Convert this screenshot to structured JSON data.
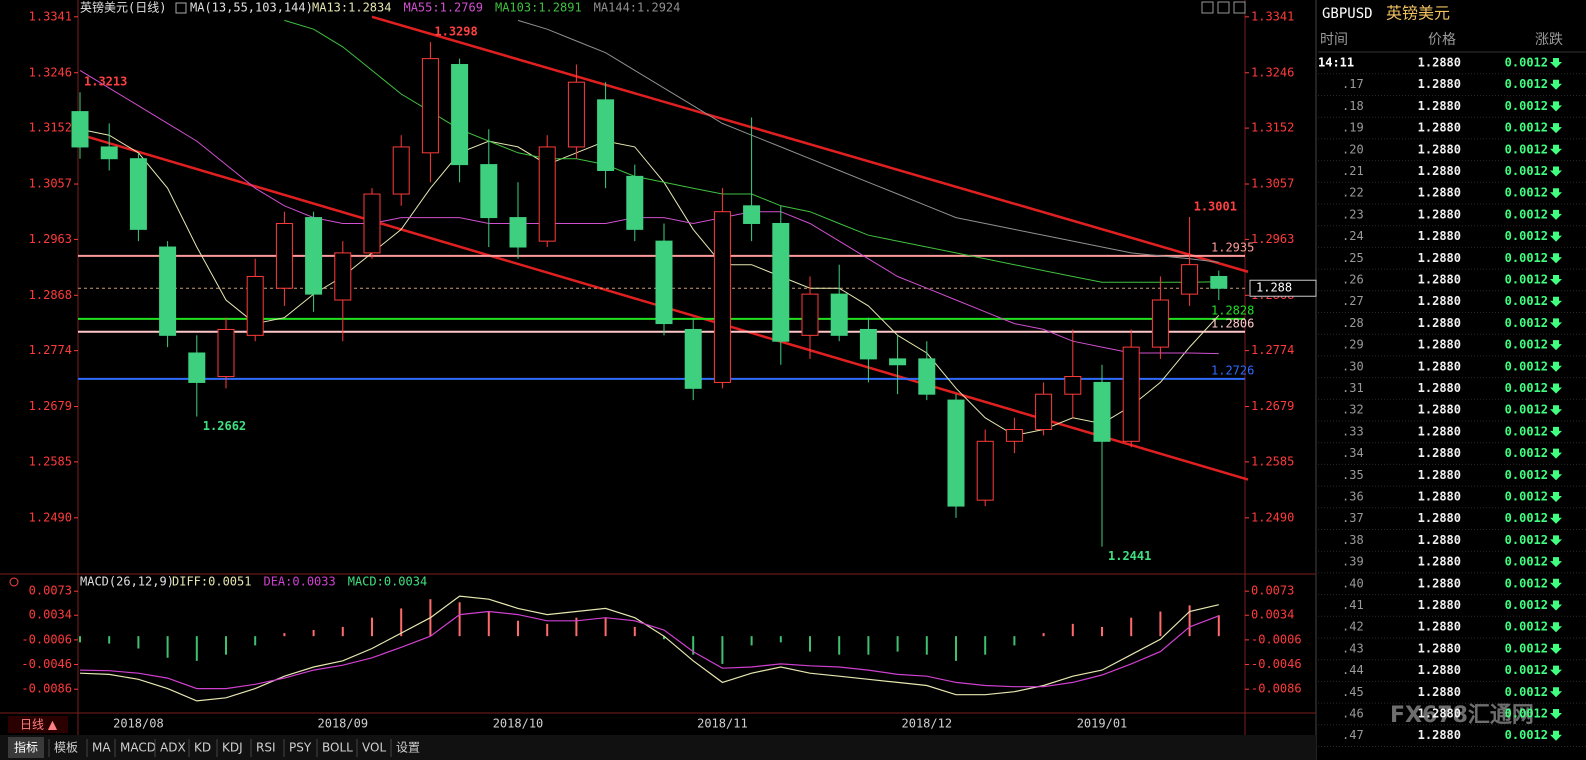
{
  "chart_data": [
    {
      "type": "candlestick",
      "title": "英镑美元(日线)",
      "ma_title": "MA(13,55,103,144)",
      "categories": [
        null,
        null,
        "2018/08",
        null,
        null,
        null,
        null,
        null,
        null,
        "2018/09",
        null,
        null,
        null,
        null,
        null,
        "2018/10",
        null,
        null,
        null,
        null,
        null,
        null,
        "2018/11",
        null,
        null,
        null,
        null,
        null,
        null,
        "2018/12",
        null,
        null,
        null,
        null,
        null,
        "2019/01",
        null,
        null,
        null,
        null
      ],
      "open": [
        1.318,
        1.312,
        1.31,
        1.295,
        1.277,
        1.273,
        1.28,
        1.288,
        1.3,
        1.286,
        1.294,
        1.304,
        1.311,
        1.326,
        1.309,
        1.3,
        1.296,
        1.312,
        1.32,
        1.307,
        1.296,
        1.281,
        1.272,
        1.302,
        1.299,
        1.28,
        1.287,
        1.281,
        1.276,
        1.276,
        1.269,
        1.252,
        1.262,
        1.264,
        1.27,
        1.272,
        1.262,
        1.278,
        1.287,
        1.29
      ],
      "high": [
        1.3213,
        1.316,
        1.311,
        1.296,
        1.28,
        1.283,
        1.293,
        1.301,
        1.301,
        1.296,
        1.305,
        1.314,
        1.3298,
        1.327,
        1.315,
        1.306,
        1.314,
        1.326,
        1.323,
        1.309,
        1.299,
        1.283,
        1.305,
        1.317,
        1.302,
        1.29,
        1.292,
        1.283,
        1.28,
        1.279,
        1.27,
        1.264,
        1.266,
        1.272,
        1.281,
        1.275,
        1.281,
        1.29,
        1.3001,
        1.291
      ],
      "low": [
        1.31,
        1.308,
        1.296,
        1.278,
        1.2662,
        1.271,
        1.279,
        1.285,
        1.284,
        1.279,
        1.293,
        1.302,
        1.306,
        1.306,
        1.295,
        1.293,
        1.295,
        1.31,
        1.305,
        1.296,
        1.28,
        1.269,
        1.271,
        1.296,
        1.275,
        1.276,
        1.279,
        1.272,
        1.27,
        1.269,
        1.249,
        1.251,
        1.26,
        1.263,
        1.266,
        1.2441,
        1.261,
        1.276,
        1.285,
        1.286
      ],
      "close": [
        1.312,
        1.31,
        1.298,
        1.28,
        1.272,
        1.281,
        1.29,
        1.299,
        1.287,
        1.294,
        1.304,
        1.312,
        1.327,
        1.309,
        1.3,
        1.295,
        1.312,
        1.323,
        1.308,
        1.298,
        1.282,
        1.271,
        1.301,
        1.299,
        1.279,
        1.287,
        1.28,
        1.276,
        1.275,
        1.27,
        1.251,
        1.262,
        1.264,
        1.27,
        1.273,
        1.262,
        1.278,
        1.286,
        1.292,
        1.288
      ],
      "up_color": "#ff3b3b",
      "down_color": "#3fd07f",
      "series": [
        {
          "name": "MA13:1.2834",
          "color": "#e6e6b0",
          "values": [
            1.315,
            1.314,
            1.311,
            1.305,
            1.295,
            1.286,
            1.282,
            1.283,
            1.287,
            1.29,
            1.294,
            1.298,
            1.305,
            1.311,
            1.313,
            1.312,
            1.309,
            1.311,
            1.313,
            1.312,
            1.306,
            1.298,
            1.292,
            1.292,
            1.29,
            1.288,
            1.288,
            1.285,
            1.28,
            1.277,
            1.271,
            1.266,
            1.263,
            1.264,
            1.266,
            1.265,
            1.268,
            1.272,
            1.278,
            1.2834
          ]
        },
        {
          "name": "MA55:1.2769",
          "color": "#d050d0",
          "values": [
            1.325,
            1.322,
            1.319,
            1.316,
            1.313,
            1.309,
            1.305,
            1.302,
            1.3,
            1.299,
            1.299,
            1.3,
            1.3,
            1.3,
            1.299,
            1.299,
            1.299,
            1.299,
            1.299,
            1.3,
            1.3,
            1.299,
            1.3,
            1.301,
            1.301,
            1.299,
            1.296,
            1.293,
            1.29,
            1.288,
            1.286,
            1.284,
            1.282,
            1.281,
            1.279,
            1.278,
            1.277,
            1.277,
            1.277,
            1.2769
          ]
        },
        {
          "name": "MA103:1.2891",
          "color": "#40c040",
          "values": [
            null,
            null,
            null,
            null,
            null,
            null,
            null,
            1.3335,
            1.332,
            1.329,
            1.325,
            1.321,
            1.318,
            1.315,
            1.313,
            1.311,
            1.31,
            1.31,
            1.309,
            1.307,
            1.306,
            1.305,
            1.304,
            1.304,
            1.302,
            1.301,
            1.299,
            1.297,
            1.296,
            1.295,
            1.294,
            1.293,
            1.292,
            1.291,
            1.29,
            1.289,
            1.289,
            1.289,
            1.289,
            1.2891
          ]
        },
        {
          "name": "MA144:1.2924",
          "color": "#909090",
          "values": [
            null,
            null,
            null,
            null,
            null,
            null,
            null,
            null,
            null,
            null,
            null,
            null,
            null,
            null,
            null,
            1.3335,
            1.332,
            1.33,
            1.328,
            1.325,
            1.322,
            1.319,
            1.316,
            1.314,
            1.312,
            1.31,
            1.308,
            1.306,
            1.304,
            1.302,
            1.3,
            1.299,
            1.298,
            1.297,
            1.296,
            1.295,
            1.294,
            1.2935,
            1.293,
            1.2924
          ]
        }
      ],
      "ylim": [
        1.2398,
        1.3356
      ],
      "yticks": [
        1.3341,
        1.3246,
        1.3152,
        1.3057,
        1.2963,
        1.2868,
        1.2774,
        1.2679,
        1.2585,
        {
          "value": 1.249,
          "label": "1.2490"
        }
      ],
      "tick_color": "#ff3b3b",
      "annotations": [
        1.3213,
        1.2662,
        1.3298,
        1.3001,
        1.2441
      ],
      "hlines": [
        {
          "value": 1.2935,
          "color": "#ff9a9a"
        },
        {
          "value": 1.2828,
          "color": "#20e020"
        },
        {
          "value": 1.2806,
          "color": "#ffc8c8"
        },
        {
          "value": 1.2726,
          "color": "#2f6bff"
        }
      ],
      "last_price": 1.288,
      "trendlines": [
        {
          "x": [
            10,
            40
          ],
          "y": [
            1.3341,
            1.2908
          ]
        },
        {
          "x": [
            0,
            40
          ],
          "y": [
            1.3141,
            1.2555
          ]
        }
      ],
      "trend_color": "#e02020"
    },
    {
      "type": "macd",
      "title": "MACD(26,12,9)",
      "histogram": {
        "name": "MACD:0.0034",
        "up_color": "#ff6a6a",
        "down_color": "#40c070",
        "values": [
          -0.001,
          -0.0012,
          -0.002,
          -0.0035,
          -0.004,
          -0.003,
          -0.0015,
          0.0005,
          0.001,
          0.0015,
          0.003,
          0.0045,
          0.006,
          0.0055,
          0.004,
          0.0025,
          0.002,
          0.003,
          0.003,
          0.0015,
          -0.0005,
          -0.003,
          -0.0045,
          -0.0015,
          -0.001,
          -0.0025,
          -0.003,
          -0.003,
          -0.0025,
          -0.003,
          -0.004,
          -0.003,
          -0.0015,
          0.0005,
          0.002,
          0.0015,
          0.003,
          0.004,
          0.005,
          0.0034
        ]
      },
      "series": [
        {
          "name": "DIFF:0.0051",
          "color": "#e6e6b0",
          "values": [
            -0.006,
            -0.0062,
            -0.007,
            -0.0085,
            -0.0105,
            -0.01,
            -0.0085,
            -0.0065,
            -0.005,
            -0.004,
            -0.002,
            0.0005,
            0.003,
            0.0065,
            0.006,
            0.0045,
            0.0035,
            0.004,
            0.0045,
            0.003,
            0.0,
            -0.004,
            -0.0075,
            -0.006,
            -0.005,
            -0.006,
            -0.0065,
            -0.007,
            -0.0075,
            -0.008,
            -0.0095,
            -0.0095,
            -0.009,
            -0.008,
            -0.0065,
            -0.0055,
            -0.003,
            -0.0005,
            0.004,
            0.0051
          ]
        },
        {
          "name": "DEA:0.0033",
          "color": "#d040d0",
          "values": [
            -0.0055,
            -0.0056,
            -0.006,
            -0.0068,
            -0.0085,
            -0.0085,
            -0.0078,
            -0.0068,
            -0.0055,
            -0.0047,
            -0.0035,
            -0.0018,
            0.0,
            0.0035,
            0.004,
            0.0035,
            0.0025,
            0.0025,
            0.003,
            0.0025,
            0.001,
            -0.0025,
            -0.0052,
            -0.005,
            -0.0045,
            -0.0048,
            -0.005,
            -0.0055,
            -0.0062,
            -0.0065,
            -0.0075,
            -0.008,
            -0.0082,
            -0.0082,
            -0.0075,
            -0.0063,
            -0.0045,
            -0.0025,
            0.0015,
            0.0033
          ]
        }
      ],
      "ylim": [
        -0.0123,
        0.0096
      ],
      "yticks": [
        0.0073,
        0.0034,
        -0.0006,
        -0.0046,
        -0.0086
      ],
      "tick_color": "#ff3b3b"
    }
  ],
  "quote_panel": {
    "symbol": "GBPUSD",
    "name": "英镑美元",
    "headers": [
      "时间",
      "价格",
      "涨跌"
    ],
    "rows": [
      [
        "14:11",
        "1.2880",
        "0.0012"
      ],
      [
        ".17",
        "1.2880",
        "0.0012"
      ],
      [
        ".18",
        "1.2880",
        "0.0012"
      ],
      [
        ".19",
        "1.2880",
        "0.0012"
      ],
      [
        ".20",
        "1.2880",
        "0.0012"
      ],
      [
        ".21",
        "1.2880",
        "0.0012"
      ],
      [
        ".22",
        "1.2880",
        "0.0012"
      ],
      [
        ".23",
        "1.2880",
        "0.0012"
      ],
      [
        ".24",
        "1.2880",
        "0.0012"
      ],
      [
        ".25",
        "1.2880",
        "0.0012"
      ],
      [
        ".26",
        "1.2880",
        "0.0012"
      ],
      [
        ".27",
        "1.2880",
        "0.0012"
      ],
      [
        ".28",
        "1.2880",
        "0.0012"
      ],
      [
        ".29",
        "1.2880",
        "0.0012"
      ],
      [
        ".30",
        "1.2880",
        "0.0012"
      ],
      [
        ".31",
        "1.2880",
        "0.0012"
      ],
      [
        ".32",
        "1.2880",
        "0.0012"
      ],
      [
        ".33",
        "1.2880",
        "0.0012"
      ],
      [
        ".34",
        "1.2880",
        "0.0012"
      ],
      [
        ".35",
        "1.2880",
        "0.0012"
      ],
      [
        ".36",
        "1.2880",
        "0.0012"
      ],
      [
        ".37",
        "1.2880",
        "0.0012"
      ],
      [
        ".38",
        "1.2880",
        "0.0012"
      ],
      [
        ".39",
        "1.2880",
        "0.0012"
      ],
      [
        ".40",
        "1.2880",
        "0.0012"
      ],
      [
        ".41",
        "1.2880",
        "0.0012"
      ],
      [
        ".42",
        "1.2880",
        "0.0012"
      ],
      [
        ".43",
        "1.2880",
        "0.0012"
      ],
      [
        ".44",
        "1.2880",
        "0.0012"
      ],
      [
        ".45",
        "1.2880",
        "0.0012"
      ],
      [
        ".46",
        "1.2880",
        "0.0012"
      ],
      [
        ".47",
        "1.2880",
        "0.0012"
      ]
    ]
  },
  "toolbar": {
    "period": "日线 ▲",
    "tabs": [
      "指标",
      "模板",
      "MA",
      "MACD",
      "ADX",
      "KD",
      "KDJ",
      "RSI",
      "PSY",
      "BOLL",
      "VOL",
      "设置"
    ]
  },
  "watermark": "FX678汇通网"
}
